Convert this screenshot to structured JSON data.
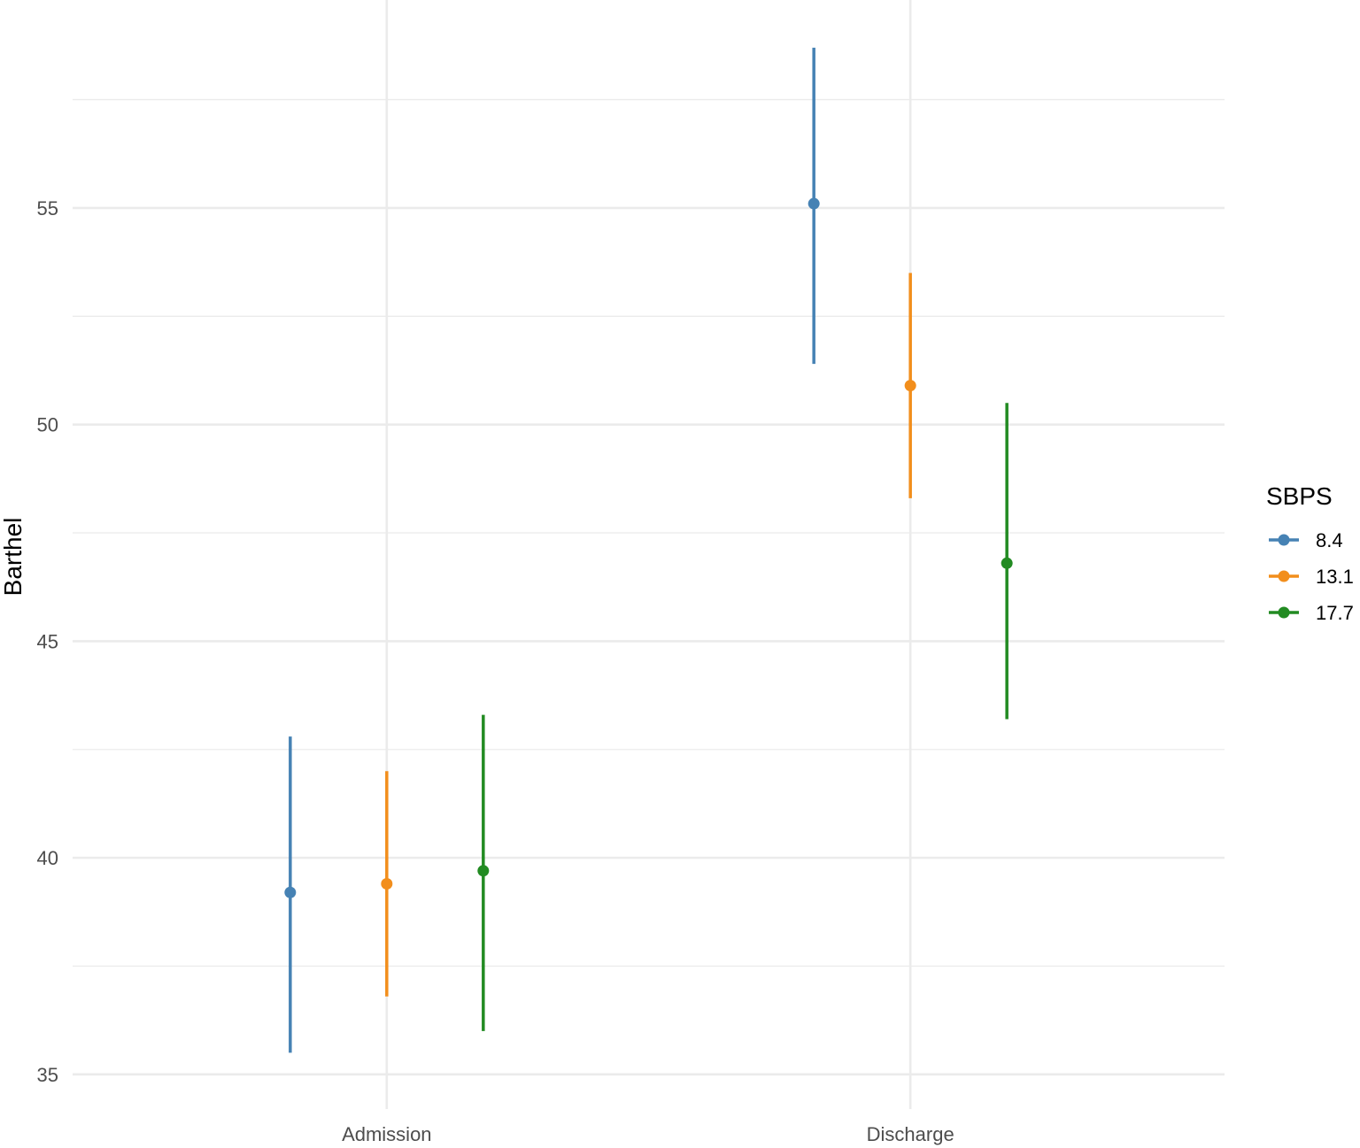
{
  "chart_data": {
    "type": "pointrange",
    "title": "",
    "xlabel": "",
    "ylabel": "Barthel",
    "ylim": [
      34.2,
      59.8
    ],
    "yticks": [
      35,
      40,
      45,
      50,
      55
    ],
    "categories": [
      "Admission",
      "Discharge"
    ],
    "grid": true,
    "legend": {
      "title": "SBPS",
      "placement": "right"
    },
    "series": [
      {
        "name": "8.4",
        "color": "#4682b4",
        "values": [
          39.2,
          55.1
        ],
        "lower": [
          35.5,
          51.4
        ],
        "upper": [
          42.8,
          58.7
        ]
      },
      {
        "name": "13.1",
        "color": "#f28e1c",
        "values": [
          39.4,
          50.9
        ],
        "lower": [
          36.8,
          48.3
        ],
        "upper": [
          42.0,
          53.5
        ]
      },
      {
        "name": "17.7",
        "color": "#228b22",
        "values": [
          39.7,
          46.8
        ],
        "lower": [
          36.0,
          43.2
        ],
        "upper": [
          43.3,
          50.5
        ]
      }
    ]
  }
}
